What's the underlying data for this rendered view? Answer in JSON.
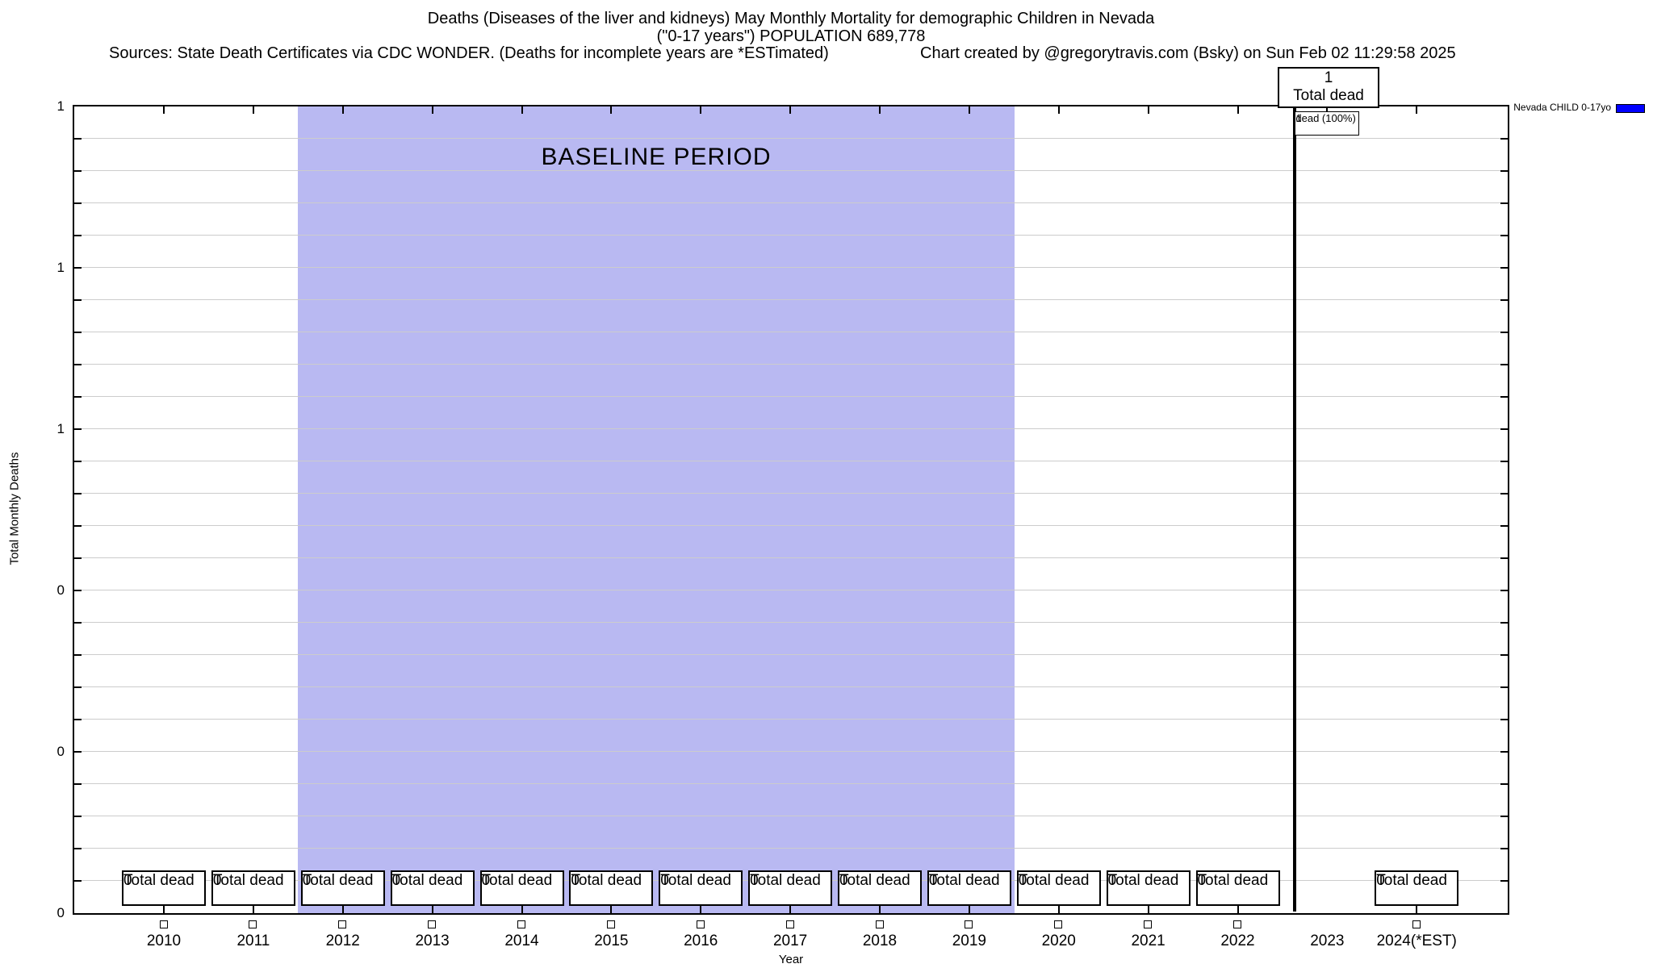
{
  "header": {
    "title": "Deaths (Diseases of the liver and kidneys) May Monthly Mortality for demographic Children in Nevada",
    "subtitle": "(\"0-17 years\") POPULATION 689,778",
    "sources": "Sources: State Death Certificates via CDC WONDER. (Deaths for incomplete years are *ESTimated)",
    "created": "Chart created by @gregorytravis.com (Bsky) on Sun Feb 02 11:29:58 2025"
  },
  "legend": {
    "label": "Nevada CHILD 0-17yo",
    "color": "#0000ff"
  },
  "axes": {
    "x_label": "Year",
    "y_label": "Total Monthly Deaths",
    "y_tick_labels": [
      "1",
      "1",
      "1",
      "0",
      "0",
      "0"
    ]
  },
  "annotations": {
    "baseline_label": "BASELINE PERIOD",
    "total_dead_top": {
      "value": "1",
      "label": "Total dead"
    },
    "bar_inner": {
      "line1": "1",
      "line2": "dead (100%)"
    }
  },
  "chart_data": {
    "type": "bar",
    "title": "Deaths (Diseases of the liver and kidneys) May Monthly Mortality for demographic Children in Nevada (\"0-17 years\") POPULATION 689,778",
    "categories": [
      "2010",
      "2011",
      "2012",
      "2013",
      "2014",
      "2015",
      "2016",
      "2017",
      "2018",
      "2019",
      "2020",
      "2021",
      "2022",
      "2023",
      "2024(*EST)"
    ],
    "series": [
      {
        "name": "Nevada CHILD 0-17yo",
        "color": "#0000ff",
        "values": [
          0,
          0,
          0,
          0,
          0,
          0,
          0,
          0,
          0,
          0,
          0,
          0,
          0,
          1,
          0
        ]
      }
    ],
    "xlabel": "Year",
    "ylabel": "Total Monthly Deaths",
    "ylim": [
      0,
      1
    ],
    "grid": true,
    "legend_position": "outside-top-right",
    "baseline_period": {
      "label": "BASELINE PERIOD",
      "x_from": "2011.5",
      "x_to": "2019.5",
      "color": "#b9b9f2"
    },
    "callouts": [
      {
        "value": "0",
        "label": "Total dead"
      },
      {
        "value": "0",
        "label": "Total dead"
      },
      {
        "value": "0",
        "label": "Total dead"
      },
      {
        "value": "0",
        "label": "Total dead"
      },
      {
        "value": "0",
        "label": "Total dead"
      },
      {
        "value": "0",
        "label": "Total dead"
      },
      {
        "value": "0",
        "label": "Total dead"
      },
      {
        "value": "0",
        "label": "Total dead"
      },
      {
        "value": "0",
        "label": "Total dead"
      },
      {
        "value": "0",
        "label": "Total dead"
      },
      {
        "value": "0",
        "label": "Total dead"
      },
      {
        "value": "0",
        "label": "Total dead"
      },
      {
        "value": "0",
        "label": "Total dead"
      },
      null,
      {
        "value": "0",
        "label": "Total dead"
      }
    ]
  }
}
